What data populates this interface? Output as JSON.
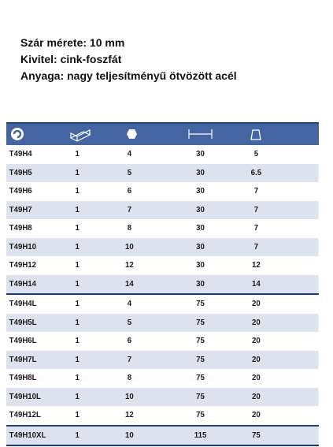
{
  "header": {
    "lines": [
      "Szár mérete: 10 mm",
      "Kivitel: cink-foszfát",
      "Anyaga: nagy teljesítményű ötvözött acél"
    ]
  },
  "table": {
    "groups": [
      {
        "rows": [
          [
            "T49H4",
            1,
            4,
            30,
            5
          ],
          [
            "T49H5",
            1,
            5,
            30,
            6.5
          ],
          [
            "T49H6",
            1,
            6,
            30,
            7
          ],
          [
            "T49H7",
            1,
            7,
            30,
            7
          ],
          [
            "T49H8",
            1,
            8,
            30,
            7
          ],
          [
            "T49H10",
            1,
            10,
            30,
            7
          ],
          [
            "T49H12",
            1,
            12,
            30,
            12
          ],
          [
            "T49H14",
            1,
            14,
            30,
            14
          ]
        ]
      },
      {
        "rows": [
          [
            "T49H4L",
            1,
            4,
            75,
            20
          ],
          [
            "T49H5L",
            1,
            5,
            75,
            20
          ],
          [
            "T49H6L",
            1,
            6,
            75,
            20
          ],
          [
            "T49H7L",
            1,
            7,
            75,
            20
          ],
          [
            "T49H8L",
            1,
            8,
            75,
            20
          ],
          [
            "T49H10L",
            1,
            10,
            75,
            20
          ],
          [
            "T49H12L",
            1,
            12,
            75,
            20
          ]
        ]
      },
      {
        "rows": [
          [
            "T49H10XL",
            1,
            10,
            115,
            75
          ]
        ]
      }
    ]
  }
}
